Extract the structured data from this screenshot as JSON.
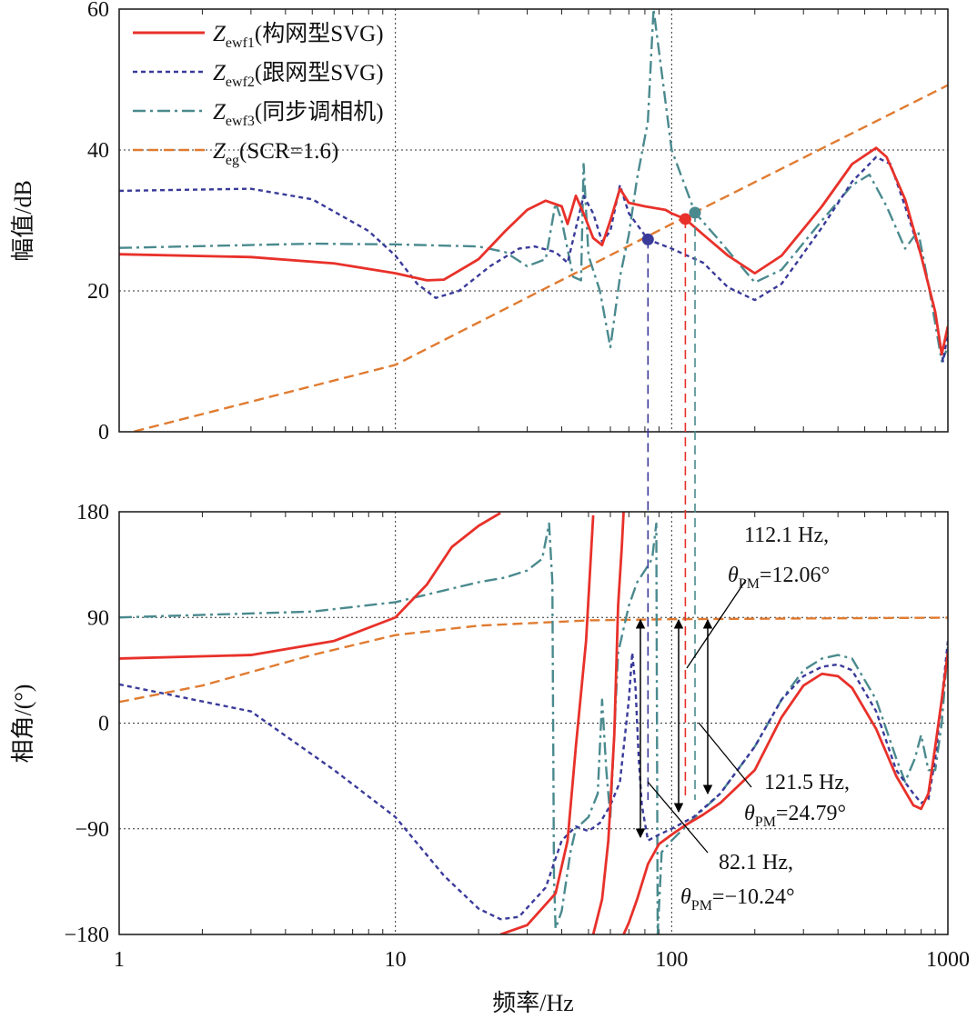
{
  "chart_data": {
    "type": "line",
    "xscale": "log",
    "xlim": [
      1,
      1000
    ],
    "xlabel": "频率/Hz",
    "xticks": [
      "1",
      "10",
      "100",
      "1000"
    ],
    "legend": [
      {
        "series": "Zewf1",
        "var": "Z",
        "sub": "ewf1",
        "desc": "(构网型SVG)",
        "color": "#e8312a",
        "style": "solid"
      },
      {
        "series": "Zewf2",
        "var": "Z",
        "sub": "ewf2",
        "desc": "(跟网型SVG)",
        "color": "#3a3a9a",
        "style": "dotted"
      },
      {
        "series": "Zewf3",
        "var": "Z",
        "sub": "ewf3",
        "desc": "(同步调相机)",
        "color": "#4a8a8e",
        "style": "dashdot"
      },
      {
        "series": "Zeg",
        "var": "Z",
        "sub": "eg",
        "desc": "(SCR=1.6)",
        "color": "#e07b30",
        "style": "dashed"
      }
    ],
    "magnitude": {
      "ylabel": "幅值/dB",
      "ylim": [
        0,
        60
      ],
      "yticks": [
        "0",
        "20",
        "40",
        "60"
      ],
      "series": [
        {
          "name": "Zewf1",
          "points": [
            [
              1,
              25.2
            ],
            [
              3,
              24.8
            ],
            [
              6,
              23.9
            ],
            [
              10,
              22.5
            ],
            [
              13,
              21.5
            ],
            [
              15,
              21.6
            ],
            [
              20,
              24.5
            ],
            [
              25,
              28.5
            ],
            [
              30,
              31.5
            ],
            [
              35,
              32.8
            ],
            [
              40,
              32.0
            ],
            [
              42,
              29.5
            ],
            [
              45,
              33.5
            ],
            [
              48,
              31
            ],
            [
              52,
              27.5
            ],
            [
              56,
              26.5
            ],
            [
              60,
              30
            ],
            [
              65,
              34.5
            ],
            [
              70,
              32.5
            ],
            [
              80,
              32
            ],
            [
              95,
              31.5
            ],
            [
              100,
              31
            ],
            [
              112.1,
              30.2
            ],
            [
              130,
              28
            ],
            [
              160,
              25
            ],
            [
              200,
              22.5
            ],
            [
              250,
              25
            ],
            [
              350,
              32
            ],
            [
              450,
              38
            ],
            [
              550,
              40.3
            ],
            [
              600,
              39
            ],
            [
              700,
              33
            ],
            [
              800,
              25
            ],
            [
              900,
              17
            ],
            [
              950,
              11
            ],
            [
              1000,
              15
            ]
          ]
        },
        {
          "name": "Zewf2",
          "points": [
            [
              1,
              34.2
            ],
            [
              3,
              34.5
            ],
            [
              5,
              33
            ],
            [
              8,
              28.5
            ],
            [
              10,
              25
            ],
            [
              12,
              21
            ],
            [
              14,
              19
            ],
            [
              17,
              20
            ],
            [
              22,
              23.5
            ],
            [
              28,
              26
            ],
            [
              32,
              26.3
            ],
            [
              38,
              25.5
            ],
            [
              42,
              24
            ],
            [
              48,
              33.5
            ],
            [
              52,
              31
            ],
            [
              56,
              27
            ],
            [
              60,
              28.5
            ],
            [
              65,
              35
            ],
            [
              70,
              31
            ],
            [
              82.1,
              27.3
            ],
            [
              100,
              26
            ],
            [
              130,
              24
            ],
            [
              160,
              20.5
            ],
            [
              200,
              18.7
            ],
            [
              250,
              21
            ],
            [
              350,
              29
            ],
            [
              450,
              35.5
            ],
            [
              550,
              39
            ],
            [
              620,
              38
            ],
            [
              700,
              32
            ],
            [
              800,
              25
            ],
            [
              900,
              17
            ],
            [
              960,
              10
            ],
            [
              1000,
              14
            ]
          ]
        },
        {
          "name": "Zewf3",
          "points": [
            [
              1,
              26.1
            ],
            [
              5,
              26.7
            ],
            [
              10,
              26.6
            ],
            [
              20,
              26.3
            ],
            [
              25,
              25.5
            ],
            [
              30,
              23.5
            ],
            [
              35,
              24.5
            ],
            [
              38,
              32.5
            ],
            [
              40,
              30
            ],
            [
              44,
              22
            ],
            [
              47,
              21.5
            ],
            [
              48,
              38
            ],
            [
              50,
              25
            ],
            [
              55,
              20
            ],
            [
              60,
              12
            ],
            [
              65,
              22
            ],
            [
              70,
              28
            ],
            [
              75,
              36
            ],
            [
              82,
              44
            ],
            [
              86,
              60
            ],
            [
              90,
              54
            ],
            [
              100,
              40
            ],
            [
              121.5,
              31.1
            ],
            [
              150,
              27
            ],
            [
              200,
              21.2
            ],
            [
              250,
              23
            ],
            [
              350,
              30
            ],
            [
              450,
              35
            ],
            [
              520,
              36.5
            ],
            [
              600,
              32
            ],
            [
              700,
              26
            ],
            [
              780,
              28.5
            ],
            [
              850,
              21
            ],
            [
              950,
              10
            ],
            [
              1000,
              12
            ]
          ]
        },
        {
          "name": "Zeg",
          "points": [
            [
              1,
              -0.5
            ],
            [
              10,
              9.5
            ],
            [
              100,
              29.5
            ],
            [
              1000,
              49.2
            ]
          ]
        }
      ],
      "markers": [
        {
          "series": "Zewf2",
          "x": 82.1,
          "y": 27.3,
          "color": "#3a3a9a"
        },
        {
          "series": "Zewf1",
          "x": 112.1,
          "y": 30.2,
          "color": "#e8312a"
        },
        {
          "series": "Zewf3",
          "x": 121.5,
          "y": 31.1,
          "color": "#4a8a8e"
        }
      ]
    },
    "phase": {
      "ylabel": "相角/(°)",
      "ylim": [
        -180,
        180
      ],
      "yticks": [
        "180",
        "90",
        "0",
        "−90",
        "−180"
      ],
      "series": [
        {
          "name": "Zewf1",
          "points": [
            [
              1,
              55
            ],
            [
              3,
              58
            ],
            [
              6,
              70
            ],
            [
              10,
              90
            ],
            [
              13,
              118
            ],
            [
              16,
              150
            ],
            [
              20,
              168
            ],
            [
              24,
              179
            ],
            [
              24.01,
              -180
            ],
            [
              30,
              -172
            ],
            [
              38,
              -145
            ],
            [
              42,
              -100
            ],
            [
              45,
              -20
            ],
            [
              49,
              70
            ],
            [
              52,
              177
            ],
            [
              52.01,
              -180
            ],
            [
              56,
              -150
            ],
            [
              59,
              -100
            ],
            [
              62,
              -10
            ],
            [
              64,
              100
            ],
            [
              66,
              150
            ],
            [
              67,
              180
            ],
            [
              67.01,
              -180
            ],
            [
              70,
              -170
            ],
            [
              75,
              -150
            ],
            [
              82.1,
              -120
            ],
            [
              90,
              -103
            ],
            [
              100,
              -95
            ],
            [
              112.1,
              -87
            ],
            [
              130,
              -78
            ],
            [
              150,
              -68
            ],
            [
              200,
              -40
            ],
            [
              250,
              5
            ],
            [
              300,
              32
            ],
            [
              350,
              42
            ],
            [
              400,
              40
            ],
            [
              450,
              30
            ],
            [
              550,
              -5
            ],
            [
              650,
              -45
            ],
            [
              750,
              -70
            ],
            [
              800,
              -73
            ],
            [
              850,
              -60
            ],
            [
              900,
              -20
            ],
            [
              950,
              20
            ],
            [
              1000,
              60
            ]
          ]
        },
        {
          "name": "Zewf2",
          "points": [
            [
              1,
              33
            ],
            [
              3,
              10
            ],
            [
              6,
              -40
            ],
            [
              10,
              -80
            ],
            [
              15,
              -130
            ],
            [
              20,
              -158
            ],
            [
              24,
              -167
            ],
            [
              28,
              -165
            ],
            [
              35,
              -140
            ],
            [
              40,
              -100
            ],
            [
              45,
              -88
            ],
            [
              50,
              -92
            ],
            [
              55,
              -85
            ],
            [
              60,
              -70
            ],
            [
              65,
              -50
            ],
            [
              70,
              20
            ],
            [
              72,
              60
            ],
            [
              74,
              30
            ],
            [
              76,
              -30
            ],
            [
              78,
              -70
            ],
            [
              82.1,
              -100
            ],
            [
              90,
              -95
            ],
            [
              100,
              -90
            ],
            [
              120,
              -80
            ],
            [
              150,
              -60
            ],
            [
              200,
              -20
            ],
            [
              250,
              20
            ],
            [
              300,
              40
            ],
            [
              350,
              48
            ],
            [
              400,
              50
            ],
            [
              450,
              45
            ],
            [
              550,
              10
            ],
            [
              650,
              -40
            ],
            [
              750,
              -60
            ],
            [
              800,
              -68
            ],
            [
              850,
              -65
            ],
            [
              900,
              -30
            ],
            [
              950,
              20
            ],
            [
              1000,
              70
            ]
          ]
        },
        {
          "name": "Zewf3",
          "points": [
            [
              1,
              90
            ],
            [
              5,
              95
            ],
            [
              10,
              103
            ],
            [
              15,
              113
            ],
            [
              20,
              120
            ],
            [
              25,
              124
            ],
            [
              30,
              130
            ],
            [
              34,
              140
            ],
            [
              36,
              170
            ],
            [
              37,
              120
            ],
            [
              37.5,
              -130
            ],
            [
              38,
              -175
            ],
            [
              40,
              -160
            ],
            [
              43,
              -110
            ],
            [
              45,
              -90
            ],
            [
              50,
              -80
            ],
            [
              54,
              -60
            ],
            [
              56,
              20
            ],
            [
              58,
              -40
            ],
            [
              60,
              -80
            ],
            [
              64,
              60
            ],
            [
              70,
              100
            ],
            [
              75,
              120
            ],
            [
              80,
              130
            ],
            [
              85,
              140
            ],
            [
              88,
              170
            ],
            [
              89,
              -180
            ],
            [
              92,
              -110
            ],
            [
              100,
              -100
            ],
            [
              121.5,
              -80
            ],
            [
              150,
              -60
            ],
            [
              200,
              -20
            ],
            [
              250,
              20
            ],
            [
              300,
              45
            ],
            [
              350,
              55
            ],
            [
              400,
              58
            ],
            [
              450,
              55
            ],
            [
              550,
              20
            ],
            [
              650,
              -30
            ],
            [
              700,
              -50
            ],
            [
              760,
              -30
            ],
            [
              800,
              -10
            ],
            [
              850,
              -40
            ],
            [
              900,
              -40
            ],
            [
              950,
              0
            ],
            [
              1000,
              65
            ]
          ]
        },
        {
          "name": "Zeg",
          "points": [
            [
              1,
              18
            ],
            [
              2,
              32
            ],
            [
              5,
              58
            ],
            [
              10,
              75
            ],
            [
              20,
              83
            ],
            [
              50,
              87.5
            ],
            [
              100,
              88.5
            ],
            [
              1000,
              89.8
            ]
          ]
        }
      ]
    },
    "annotations": [
      {
        "freq_label": "112.1 Hz,",
        "theta": "θ",
        "theta_sub": "PM",
        "value": "=12.06°"
      },
      {
        "freq_label": "121.5 Hz,",
        "theta": "θ",
        "theta_sub": "PM",
        "value": "=24.79°"
      },
      {
        "freq_label": "82.1 Hz,",
        "theta": "θ",
        "theta_sub": "PM",
        "value": "=−10.24°"
      }
    ]
  }
}
